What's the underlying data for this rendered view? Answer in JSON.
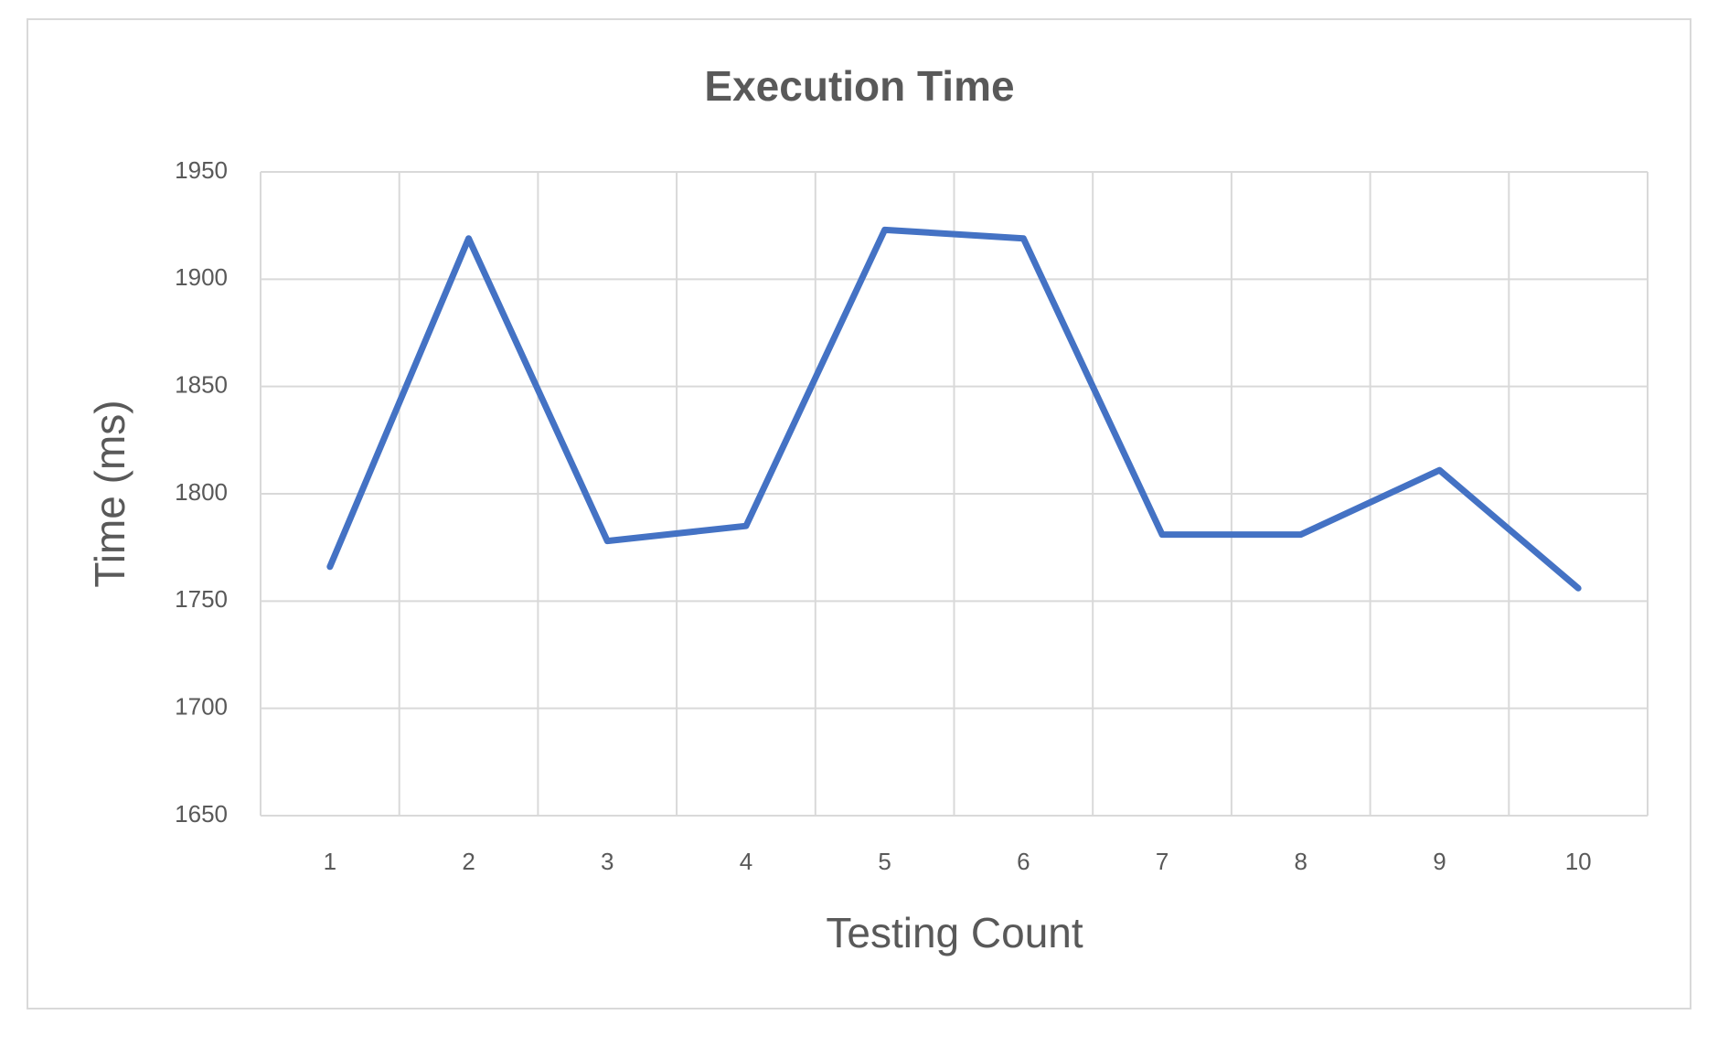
{
  "chart_data": {
    "type": "line",
    "title": "Execution Time",
    "x_label": "Testing Count",
    "y_label": "Time (ms)",
    "categories": [
      "1",
      "2",
      "3",
      "4",
      "5",
      "6",
      "7",
      "8",
      "9",
      "10"
    ],
    "series": [
      {
        "name": "Execution Time",
        "color": "#4472c4",
        "values": [
          1766,
          1919,
          1778,
          1785,
          1923,
          1919,
          1781,
          1781,
          1811,
          1756
        ]
      }
    ],
    "ylim": [
      1650,
      1950
    ],
    "yticks": [
      1650,
      1700,
      1750,
      1800,
      1850,
      1900,
      1950
    ],
    "grid": true
  }
}
